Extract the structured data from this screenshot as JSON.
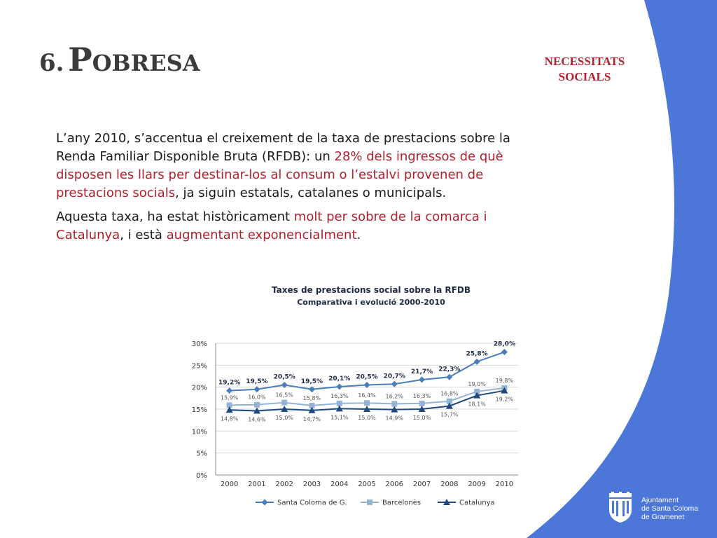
{
  "slide": {
    "title_number": "6.",
    "title_first_letter": "P",
    "title_rest": "OBRESA",
    "badge_line1": "NECESSITATS",
    "badge_line2": "SOCIALS",
    "accent_color": "#b21f2d",
    "band_color": "#4d76d9"
  },
  "paragraphs": {
    "p1": {
      "a": "L’any 2010, s’accentua el creixement de la taxa de prestacions sobre la Renda Familiar Disponible Bruta (RFDB): un ",
      "b": "28% dels ingressos de què disposen les llars per destinar-los al consum  o l’estalvi provenen de prestacions socials",
      "c": ", ja siguin estatals, catalanes o municipals."
    },
    "p2": {
      "a": "Aquesta taxa, ha estat històricament ",
      "b": "molt per sobre de la comarca i Catalunya",
      "c": ", i està ",
      "d": "augmentant exponencialment",
      "e": "."
    }
  },
  "chart_data": {
    "type": "line",
    "title": "Taxes de prestacions social sobre la RFDB",
    "subtitle": "Comparativa i evolució 2000-2010",
    "x": [
      "2000",
      "2001",
      "2002",
      "2003",
      "2004",
      "2005",
      "2006",
      "2007",
      "2008",
      "2009",
      "2010"
    ],
    "ylim": [
      0,
      30
    ],
    "yticks": [
      "0%",
      "5%",
      "10%",
      "15%",
      "20%",
      "25%",
      "30%"
    ],
    "grid": true,
    "legend_position": "bottom",
    "series": [
      {
        "name": "Santa Coloma de G.",
        "color": "#4a7ebb",
        "marker": "diamond",
        "values": [
          19.2,
          19.5,
          20.5,
          19.5,
          20.1,
          20.5,
          20.7,
          21.7,
          22.3,
          25.8,
          28.0
        ],
        "labels": [
          "19,2%",
          "19,5%",
          "20,5%",
          "19,5%",
          "20,1%",
          "20,5%",
          "20,7%",
          "21,7%",
          "22,3%",
          "25,8%",
          "28,0%"
        ]
      },
      {
        "name": "Barcelonès",
        "color": "#95b3d7",
        "marker": "square",
        "values": [
          15.9,
          16.0,
          16.5,
          15.8,
          16.3,
          16.4,
          16.2,
          16.3,
          16.8,
          19.0,
          19.8
        ],
        "labels": [
          "15,9%",
          "16,0%",
          "16,5%",
          "15,8%",
          "16,3%",
          "16,4%",
          "16,2%",
          "16,3%",
          "16,8%",
          "19,0%",
          "19,8%"
        ]
      },
      {
        "name": "Catalunya",
        "color": "#1f497d",
        "marker": "triangle",
        "values": [
          14.8,
          14.6,
          15.0,
          14.7,
          15.1,
          15.0,
          14.9,
          15.0,
          15.7,
          18.1,
          19.2
        ],
        "labels": [
          "14,8%",
          "14,6%",
          "15,0%",
          "14,7%",
          "15,1%",
          "15,0%",
          "14,9%",
          "15,0%",
          "15,7%",
          "18,1%",
          "19,2%"
        ]
      }
    ]
  },
  "logo": {
    "line1": "Ajuntament",
    "line2": "de Santa Coloma",
    "line3": "de Gramenet"
  }
}
